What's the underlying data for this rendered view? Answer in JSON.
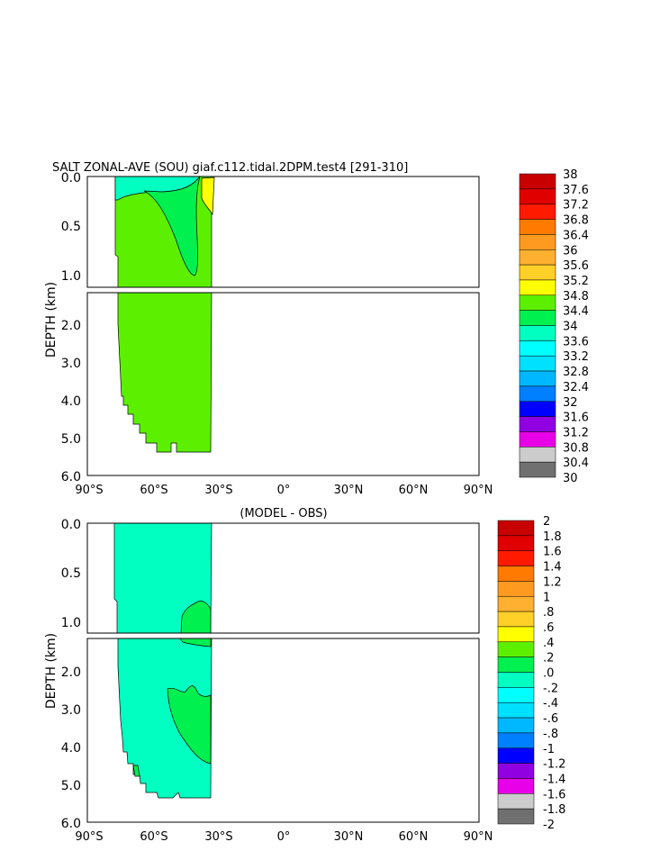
{
  "chart_data": [
    {
      "type": "heatmap",
      "title": "SALT ZONAL-AVE (SOU) giaf.c112.tidal.2DPM.test4 [291-310]",
      "xlabel": "",
      "ylabel": "DEPTH (km)",
      "x_ticks": [
        "90°S",
        "60°S",
        "30°S",
        "0°",
        "30°N",
        "60°N",
        "90°N"
      ],
      "y_ticks_upper": [
        "0.0",
        "0.5",
        "1.0"
      ],
      "y_ticks_lower": [
        "2.0",
        "3.0",
        "4.0",
        "5.0",
        "6.0"
      ],
      "xlim": [
        -90,
        90
      ],
      "ylim_km": [
        0,
        6
      ],
      "colorbar": {
        "labels": [
          "38",
          "37.6",
          "37.2",
          "36.8",
          "36.4",
          "36",
          "35.6",
          "35.2",
          "34.8",
          "34.4",
          "34",
          "33.6",
          "33.2",
          "32.8",
          "32.4",
          "32",
          "31.6",
          "31.2",
          "30.8",
          "30.4",
          "30"
        ],
        "colors": [
          "#c80000",
          "#e00000",
          "#ff1a00",
          "#ff7a00",
          "#ff9a20",
          "#ffb030",
          "#ffd028",
          "#ffff00",
          "#5cf000",
          "#00f050",
          "#00ffc0",
          "#00ffff",
          "#00e0ff",
          "#00b8ff",
          "#0080ff",
          "#0000ff",
          "#9000e0",
          "#e800e8",
          "#cccccc",
          "#707070"
        ]
      }
    },
    {
      "type": "heatmap",
      "title": "(MODEL - OBS)",
      "xlabel": "",
      "ylabel": "DEPTH (km)",
      "x_ticks": [
        "90°S",
        "60°S",
        "30°S",
        "0°",
        "30°N",
        "60°N",
        "90°N"
      ],
      "y_ticks_upper": [
        "0.0",
        "0.5",
        "1.0"
      ],
      "y_ticks_lower": [
        "2.0",
        "3.0",
        "4.0",
        "5.0",
        "6.0"
      ],
      "xlim": [
        -90,
        90
      ],
      "ylim_km": [
        0,
        6
      ],
      "colorbar": {
        "labels": [
          "2",
          "1.8",
          "1.6",
          "1.4",
          "1.2",
          "1",
          ".8",
          ".6",
          ".4",
          ".2",
          ".0",
          "-.2",
          "-.4",
          "-.6",
          "-.8",
          "-1",
          "-1.2",
          "-1.4",
          "-1.6",
          "-1.8",
          "-2"
        ],
        "colors": [
          "#c80000",
          "#e00000",
          "#ff1a00",
          "#ff7a00",
          "#ff9a20",
          "#ffb030",
          "#ffd028",
          "#ffff00",
          "#5cf000",
          "#00f050",
          "#00ffc0",
          "#00ffff",
          "#00e0ff",
          "#00b8ff",
          "#0080ff",
          "#0000ff",
          "#9000e0",
          "#e800e8",
          "#cccccc",
          "#707070"
        ]
      }
    }
  ]
}
